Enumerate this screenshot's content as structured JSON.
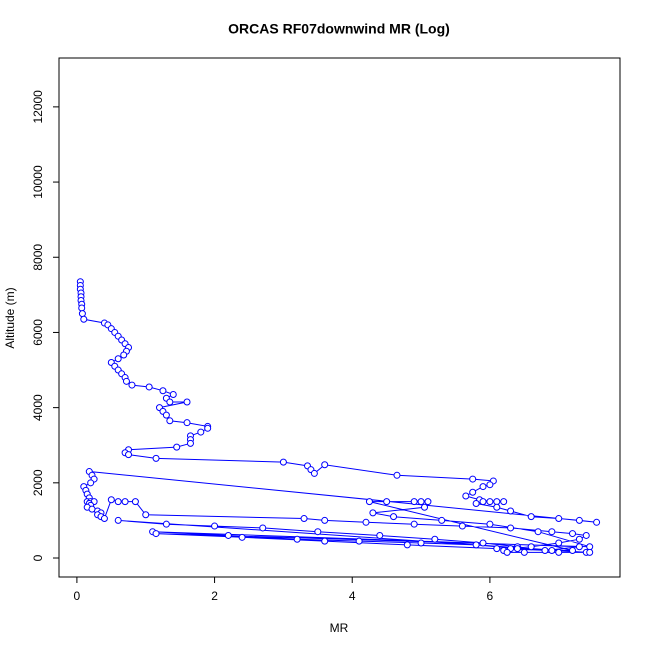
{
  "chart_data": {
    "type": "line",
    "title": "ORCAS RF07downwind MR (Log)",
    "x_label": "MR",
    "y_label": "Altitude (m)",
    "marker": "circle",
    "x": [
      0.05,
      0.05,
      0.05,
      0.06,
      0.06,
      0.06,
      0.07,
      0.07,
      0.08,
      0.1,
      0.4,
      0.45,
      0.5,
      0.55,
      0.6,
      0.65,
      0.7,
      0.75,
      0.72,
      0.68,
      0.6,
      0.5,
      0.55,
      0.6,
      0.65,
      0.7,
      0.72,
      0.8,
      1.05,
      1.25,
      1.4,
      1.3,
      1.35,
      1.6,
      1.2,
      1.25,
      1.3,
      1.35,
      1.6,
      1.9,
      1.9,
      1.8,
      1.65,
      1.65,
      1.65,
      1.45,
      0.75,
      0.7,
      0.75,
      1.15,
      3.0,
      3.35,
      3.4,
      3.45,
      3.6,
      4.65,
      5.75,
      6.05,
      6.0,
      5.9,
      5.75,
      5.65,
      5.85,
      6.0,
      6.1,
      6.2,
      5.9,
      5.8,
      6.1,
      6.3,
      6.6,
      7.0,
      7.3,
      7.55,
      0.18,
      0.22,
      0.25,
      0.2,
      0.1,
      0.13,
      0.15,
      0.18,
      0.15,
      0.2,
      0.25,
      0.18,
      0.2,
      0.15,
      0.22,
      0.3,
      0.35,
      0.3,
      0.35,
      0.4,
      0.5,
      0.6,
      0.7,
      0.85,
      1.0,
      3.3,
      3.6,
      4.2,
      4.9,
      5.6,
      6.3,
      6.9,
      7.2,
      7.4,
      7.3,
      7.0,
      6.6,
      6.3,
      6.2,
      6.25,
      6.5,
      7.0,
      7.4,
      0.6,
      1.3,
      2.0,
      2.7,
      3.5,
      4.4,
      5.2,
      5.9,
      6.4,
      6.8,
      7.3,
      1.1,
      2.2,
      3.2,
      4.1,
      5.0,
      5.8,
      6.4,
      7.2,
      4.25,
      4.5,
      4.9,
      5.0,
      5.1,
      5.05,
      4.3,
      4.6,
      5.3,
      6.0,
      6.7,
      7.45,
      1.15,
      2.4,
      3.6,
      4.8,
      6.1,
      6.9,
      7.45
    ],
    "series": [
      {
        "name": "MR",
        "color": "#0000ff",
        "values": [
          7350,
          7250,
          7150,
          7050,
          6950,
          6850,
          6750,
          6650,
          6500,
          6350,
          6250,
          6200,
          6100,
          6000,
          5900,
          5800,
          5700,
          5600,
          5500,
          5400,
          5300,
          5200,
          5100,
          5000,
          4900,
          4800,
          4700,
          4600,
          4550,
          4450,
          4350,
          4250,
          4150,
          4150,
          4000,
          3900,
          3800,
          3650,
          3600,
          3500,
          3450,
          3350,
          3250,
          3150,
          3050,
          2950,
          2880,
          2800,
          2750,
          2650,
          2550,
          2450,
          2350,
          2250,
          2480,
          2200,
          2100,
          2050,
          1950,
          1900,
          1750,
          1650,
          1550,
          1500,
          1500,
          1500,
          1500,
          1450,
          1350,
          1250,
          1100,
          1050,
          1000,
          950,
          2300,
          2200,
          2100,
          2000,
          1900,
          1800,
          1700,
          1600,
          1500,
          1500,
          1500,
          1450,
          1400,
          1350,
          1300,
          1250,
          1200,
          1150,
          1100,
          1050,
          1550,
          1500,
          1500,
          1500,
          1150,
          1050,
          1000,
          950,
          900,
          850,
          800,
          700,
          650,
          600,
          500,
          400,
          300,
          250,
          200,
          150,
          150,
          150,
          150,
          1000,
          900,
          850,
          800,
          700,
          600,
          500,
          400,
          300,
          200,
          300,
          700,
          600,
          500,
          450,
          400,
          350,
          250,
          200,
          1500,
          1500,
          1500,
          1500,
          1500,
          1350,
          1200,
          1100,
          1000,
          900,
          700,
          300,
          650,
          550,
          450,
          350,
          250,
          200,
          150
        ]
      }
    ],
    "xlim": [
      -0.26,
      7.89
    ],
    "ylim": [
      -505,
      13300
    ],
    "xticks": [
      0,
      2,
      4,
      6
    ],
    "yticks": [
      0,
      2000,
      4000,
      6000,
      8000,
      10000,
      12000
    ]
  }
}
